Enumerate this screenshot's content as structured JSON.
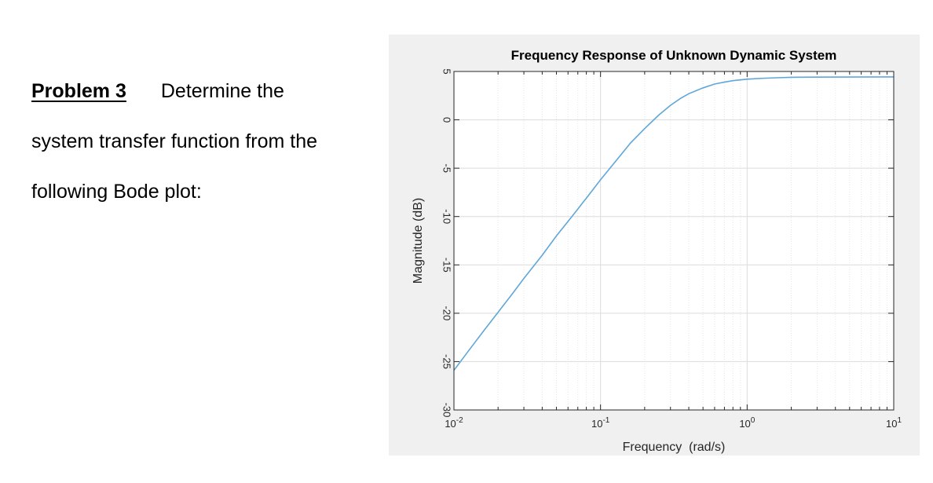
{
  "problem": {
    "heading": "Problem 3",
    "line1_rest": "Determine the",
    "line2": "system transfer function from the",
    "line3": "following Bode plot:"
  },
  "colors": {
    "figure_background": "#f0f0f0",
    "axes_background": "#ffffff",
    "curve": "#5fa7d9",
    "grid": "#dcdcdc"
  },
  "chart_data": {
    "type": "line",
    "title": "Frequency Response of Unknown Dynamic System",
    "xlabel": "Frequency  (rad/s)",
    "ylabel": "Magnitude (dB)",
    "xscale": "log",
    "xlim": [
      0.01,
      10
    ],
    "ylim": [
      -30,
      5
    ],
    "xticks": [
      {
        "value": 0.01,
        "base": "10",
        "exp": "-2"
      },
      {
        "value": 0.1,
        "base": "10",
        "exp": "-1"
      },
      {
        "value": 1,
        "base": "10",
        "exp": "0"
      },
      {
        "value": 10,
        "base": "10",
        "exp": "1"
      }
    ],
    "yticks": [
      5,
      0,
      -5,
      -10,
      -15,
      -20,
      -25,
      -30
    ],
    "grid": true,
    "series": [
      {
        "x": [
          0.01,
          0.013,
          0.016,
          0.02,
          0.025,
          0.03,
          0.04,
          0.05,
          0.063,
          0.08,
          0.1,
          0.125,
          0.16,
          0.2,
          0.25,
          0.3,
          0.35,
          0.4,
          0.5,
          0.6,
          0.7,
          0.8,
          1.0,
          1.3,
          1.6,
          2.0,
          3.0,
          5.0,
          10.0
        ],
        "y": [
          -25.9,
          -23.6,
          -21.8,
          -19.9,
          -18.0,
          -16.4,
          -14.0,
          -12.0,
          -10.1,
          -8.1,
          -6.2,
          -4.4,
          -2.4,
          -0.9,
          0.5,
          1.5,
          2.2,
          2.7,
          3.3,
          3.7,
          3.9,
          4.05,
          4.2,
          4.3,
          4.35,
          4.4,
          4.42,
          4.43,
          4.44
        ]
      }
    ]
  }
}
